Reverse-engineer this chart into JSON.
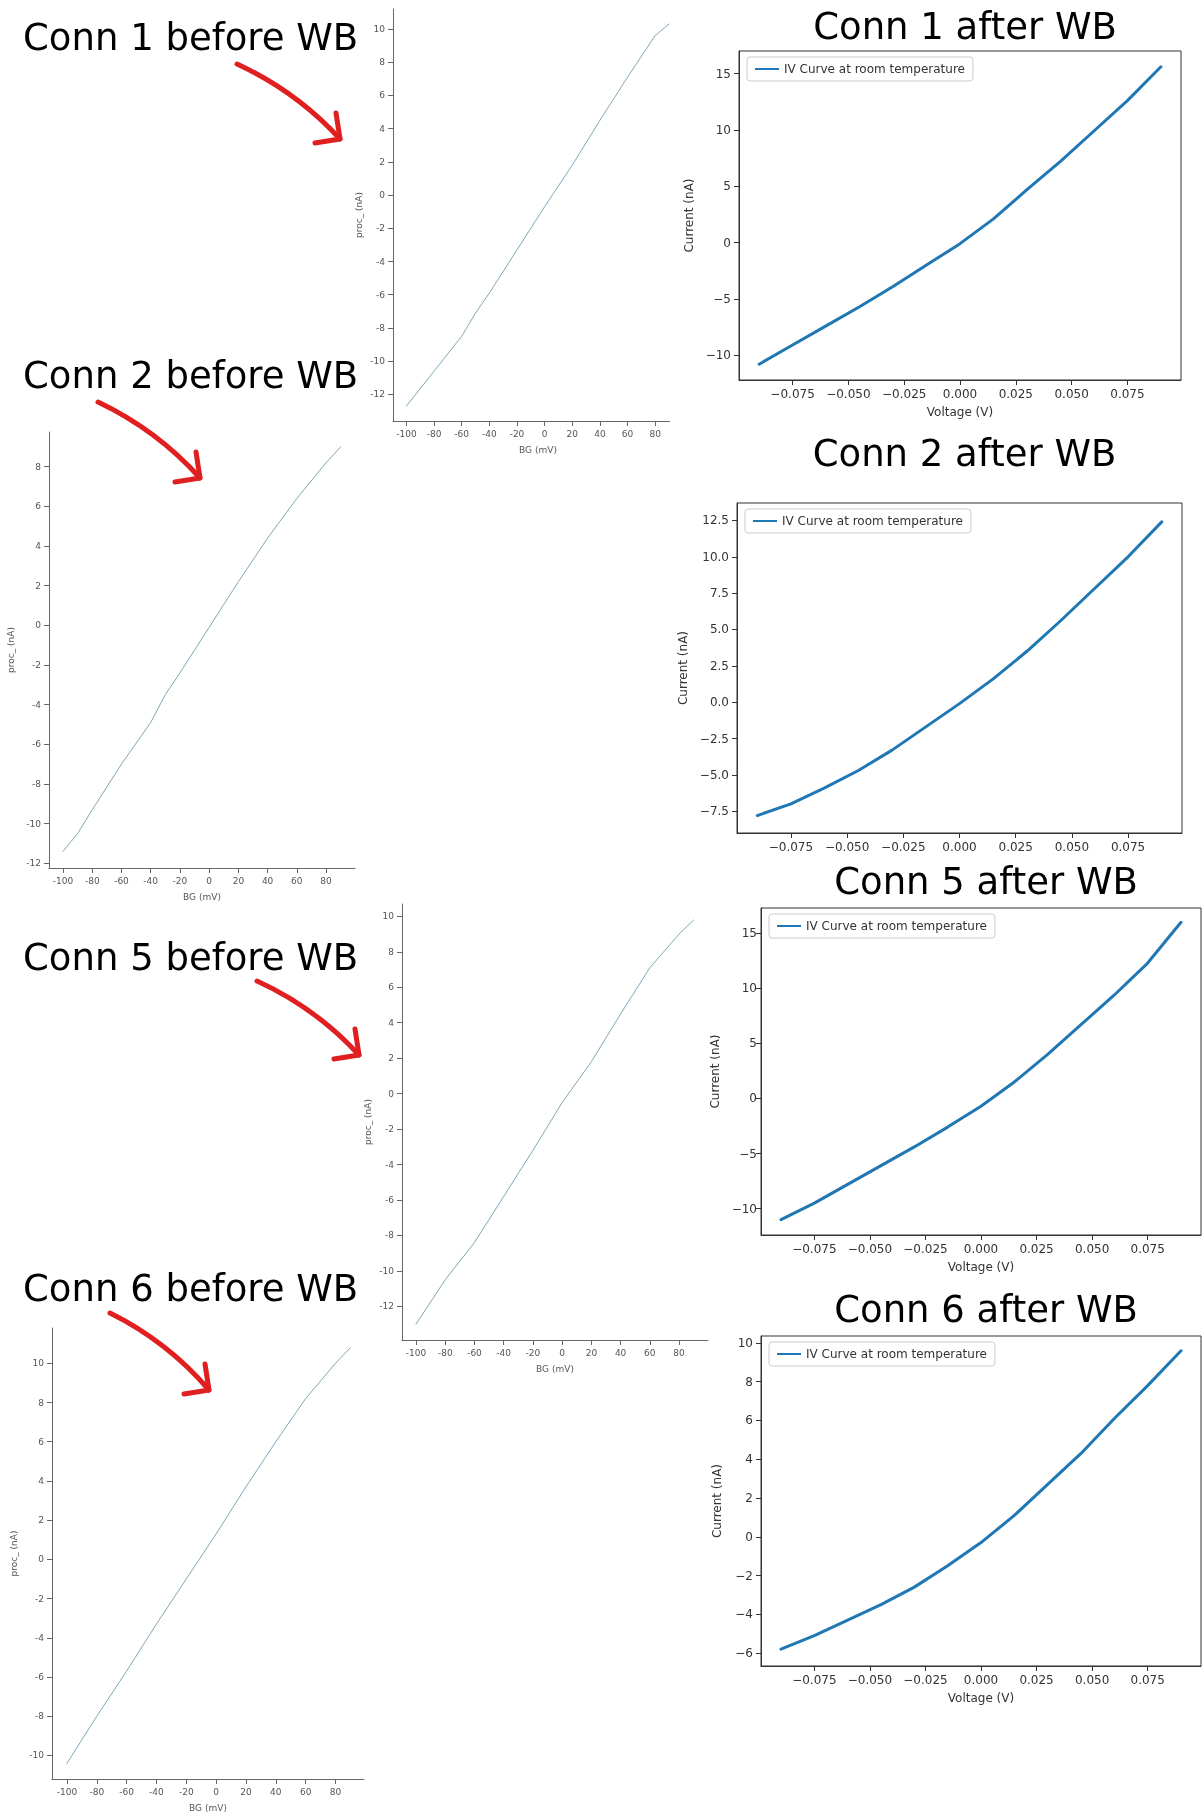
{
  "chart_data": [
    {
      "type": "line",
      "title": "Conn 1 before WB",
      "xlabel": "BG (mV)",
      "ylabel": "proc_ (nA)",
      "x": [
        -100,
        -80,
        -60,
        -50,
        -40,
        -20,
        0,
        20,
        40,
        60,
        80,
        90
      ],
      "series": [
        {
          "color": "#7fa7b5",
          "values": [
            -12.7,
            -10.6,
            -8.5,
            -7.1,
            -5.9,
            -3.3,
            -0.7,
            1.8,
            4.5,
            7.1,
            9.6,
            10.3
          ]
        }
      ],
      "xlim": [
        -109.7,
        100.1
      ],
      "ylim": [
        -13.6,
        11.2
      ],
      "xticks": [
        -100,
        -80,
        -60,
        -40,
        -20,
        0,
        20,
        40,
        60,
        80
      ],
      "yticks": [
        -12,
        -10,
        -8,
        -6,
        -4,
        -2,
        0,
        2,
        4,
        6,
        8,
        10
      ],
      "grid": false,
      "marker": "none"
    },
    {
      "type": "line",
      "title": "Conn 1 after WB",
      "xlabel": "Voltage (V)",
      "ylabel": "Current (nA)",
      "x": [
        -0.09,
        -0.075,
        -0.06,
        -0.045,
        -0.03,
        -0.015,
        0,
        0.015,
        0.03,
        0.045,
        0.06,
        0.075,
        0.09
      ],
      "series": [
        {
          "name": "IV Curve at room temperature",
          "color": "#1f77b4",
          "values": [
            -10.8,
            -9.1,
            -7.4,
            -5.7,
            -3.9,
            -2.0,
            -0.1,
            2.1,
            4.7,
            7.2,
            9.9,
            12.6,
            15.6
          ]
        }
      ],
      "xlim": [
        -0.099,
        0.099
      ],
      "ylim": [
        -12.2,
        17
      ],
      "xticks": [
        {
          "value": -0.075,
          "label": "−0.075"
        },
        {
          "value": -0.05,
          "label": "−0.050"
        },
        {
          "value": -0.025,
          "label": "−0.025"
        },
        {
          "value": 0,
          "label": "0.000"
        },
        {
          "value": 0.025,
          "label": "0.025"
        },
        {
          "value": 0.05,
          "label": "0.050"
        },
        {
          "value": 0.075,
          "label": "0.075"
        }
      ],
      "yticks": [
        {
          "value": -10,
          "label": "−10"
        },
        {
          "value": -5,
          "label": "−5"
        },
        0,
        5,
        10,
        15
      ],
      "grid": false,
      "legend": "top left",
      "marker": "none"
    },
    {
      "type": "line",
      "title": "Conn 2 before WB",
      "xlabel": "BG (mV)",
      "ylabel": "proc_ (nA)",
      "x": [
        -100,
        -90,
        -80,
        -60,
        -40,
        -30,
        -20,
        0,
        20,
        40,
        60,
        80,
        90
      ],
      "series": [
        {
          "color": "#7fa7b5",
          "values": [
            -11.4,
            -10.5,
            -9.3,
            -7,
            -4.9,
            -3.5,
            -2.4,
            -0.1,
            2.2,
            4.4,
            6.4,
            8.2,
            9.0
          ]
        }
      ],
      "xlim": [
        -109.6,
        99.8
      ],
      "ylim": [
        -12.24,
        9.75
      ],
      "xticks": [
        -100,
        -80,
        -60,
        -40,
        -20,
        0,
        20,
        40,
        60,
        80
      ],
      "yticks": [
        -12,
        -10,
        -8,
        -6,
        -4,
        -2,
        0,
        2,
        4,
        6,
        8
      ],
      "grid": false,
      "marker": "none"
    },
    {
      "type": "line",
      "title": "Conn 2 after WB",
      "ylabel": "Current (nA)",
      "x": [
        -0.09,
        -0.075,
        -0.06,
        -0.045,
        -0.03,
        -0.015,
        0,
        0.015,
        0.03,
        0.045,
        0.06,
        0.075,
        0.09
      ],
      "series": [
        {
          "name": "IV Curve at room temperature",
          "color": "#1f77b4",
          "values": [
            -7.8,
            -7.0,
            -5.9,
            -4.7,
            -3.3,
            -1.7,
            -0.1,
            1.6,
            3.5,
            5.6,
            7.8,
            10.0,
            12.4
          ]
        }
      ],
      "xlim": [
        -0.099,
        0.099
      ],
      "ylim": [
        -9,
        13.7
      ],
      "xticks": [
        {
          "value": -0.075,
          "label": "−0.075"
        },
        {
          "value": -0.05,
          "label": "−0.050"
        },
        {
          "value": -0.025,
          "label": "−0.025"
        },
        {
          "value": 0,
          "label": "0.000"
        },
        {
          "value": 0.025,
          "label": "0.025"
        },
        {
          "value": 0.05,
          "label": "0.050"
        },
        {
          "value": 0.075,
          "label": "0.075"
        }
      ],
      "yticks": [
        {
          "value": -7.5,
          "label": "−7.5"
        },
        {
          "value": -5,
          "label": "−5.0"
        },
        {
          "value": -2.5,
          "label": "−2.5"
        },
        {
          "value": 0,
          "label": "0.0"
        },
        2.5,
        {
          "value": 5,
          "label": "5.0"
        },
        7.5,
        {
          "value": 10,
          "label": "10.0"
        },
        12.5
      ],
      "grid": false,
      "legend": "top left",
      "marker": "none"
    },
    {
      "type": "line",
      "title": "Conn 5 before WB",
      "xlabel": "BG (mV)",
      "ylabel": "proc_ (nA)",
      "x": [
        -100,
        -80,
        -60,
        -40,
        -20,
        0,
        20,
        40,
        60,
        80,
        90
      ],
      "series": [
        {
          "color": "#7fa7b5",
          "values": [
            -13,
            -10.5,
            -8.4,
            -5.8,
            -3.2,
            -0.5,
            1.8,
            4.5,
            7.1,
            9,
            9.8
          ]
        }
      ],
      "xlim": [
        -109.6,
        99.8
      ],
      "ylim": [
        -13.9,
        10.7
      ],
      "xticks": [
        -100,
        -80,
        -60,
        -40,
        -20,
        0,
        20,
        40,
        60,
        80
      ],
      "yticks": [
        -12,
        -10,
        -8,
        -6,
        -4,
        -2,
        0,
        2,
        4,
        6,
        8,
        10
      ],
      "grid": false,
      "marker": "none"
    },
    {
      "type": "line",
      "title": "Conn 5 after WB",
      "xlabel": "Voltage (V)",
      "ylabel": "Current (nA)",
      "x": [
        -0.09,
        -0.075,
        -0.06,
        -0.045,
        -0.03,
        -0.015,
        0,
        0.015,
        0.03,
        0.045,
        0.06,
        0.075,
        0.09
      ],
      "series": [
        {
          "name": "IV Curve at room temperature",
          "color": "#1f77b4",
          "values": [
            -11,
            -9.5,
            -7.8,
            -6.1,
            -4.4,
            -2.6,
            -0.7,
            1.5,
            4.0,
            6.7,
            9.4,
            12.3,
            16.0
          ]
        }
      ],
      "xlim": [
        -0.099,
        0.099
      ],
      "ylim": [
        -12.4,
        17.3
      ],
      "xticks": [
        {
          "value": -0.075,
          "label": "−0.075"
        },
        {
          "value": -0.05,
          "label": "−0.050"
        },
        {
          "value": -0.025,
          "label": "−0.025"
        },
        {
          "value": 0,
          "label": "0.000"
        },
        {
          "value": 0.025,
          "label": "0.025"
        },
        {
          "value": 0.05,
          "label": "0.050"
        },
        {
          "value": 0.075,
          "label": "0.075"
        }
      ],
      "yticks": [
        {
          "value": -10,
          "label": "−10"
        },
        {
          "value": -5,
          "label": "−5"
        },
        0,
        5,
        10,
        15
      ],
      "grid": false,
      "legend": "top left",
      "marker": "none"
    },
    {
      "type": "line",
      "title": "Conn 6 before WB",
      "xlabel": "BG (mV)",
      "ylabel": "proc_ (nA)",
      "x": [
        -100,
        -80,
        -60,
        -40,
        -20,
        0,
        20,
        40,
        60,
        80,
        90
      ],
      "series": [
        {
          "color": "#7fa7b5",
          "values": [
            -10.4,
            -8,
            -5.7,
            -3.3,
            -1,
            1.3,
            3.7,
            6,
            8.2,
            10,
            10.8
          ]
        }
      ],
      "xlim": [
        -110,
        99.1
      ],
      "ylim": [
        -11.2,
        11.8
      ],
      "xticks": [
        -100,
        -80,
        -60,
        -40,
        -20,
        0,
        20,
        40,
        60,
        80
      ],
      "yticks": [
        -10,
        -8,
        -6,
        -4,
        -2,
        0,
        2,
        4,
        6,
        8,
        10
      ],
      "grid": false,
      "marker": "none"
    },
    {
      "type": "line",
      "title": "Conn 6 after WB",
      "xlabel": "Voltage (V)",
      "ylabel": "Current (nA)",
      "x": [
        -0.09,
        -0.075,
        -0.06,
        -0.045,
        -0.03,
        -0.015,
        0,
        0.015,
        0.03,
        0.045,
        0.06,
        0.075,
        0.09
      ],
      "series": [
        {
          "name": "IV Curve at room temperature",
          "color": "#1f77b4",
          "values": [
            -5.8,
            -5.1,
            -4.3,
            -3.5,
            -2.6,
            -1.5,
            -0.3,
            1.1,
            2.7,
            4.3,
            6.1,
            7.8,
            9.6
          ]
        }
      ],
      "xlim": [
        -0.099,
        0.099
      ],
      "ylim": [
        -6.67,
        10.36
      ],
      "xticks": [
        {
          "value": -0.075,
          "label": "−0.075"
        },
        {
          "value": -0.05,
          "label": "−0.050"
        },
        {
          "value": -0.025,
          "label": "−0.025"
        },
        {
          "value": 0,
          "label": "0.000"
        },
        {
          "value": 0.025,
          "label": "0.025"
        },
        {
          "value": 0.05,
          "label": "0.050"
        },
        {
          "value": 0.075,
          "label": "0.075"
        }
      ],
      "yticks": [
        {
          "value": -6,
          "label": "−6"
        },
        {
          "value": -4,
          "label": "−4"
        },
        {
          "value": -2,
          "label": "−2"
        },
        0,
        2,
        4,
        6,
        8,
        10
      ],
      "grid": false,
      "legend": "top left",
      "marker": "none"
    }
  ]
}
